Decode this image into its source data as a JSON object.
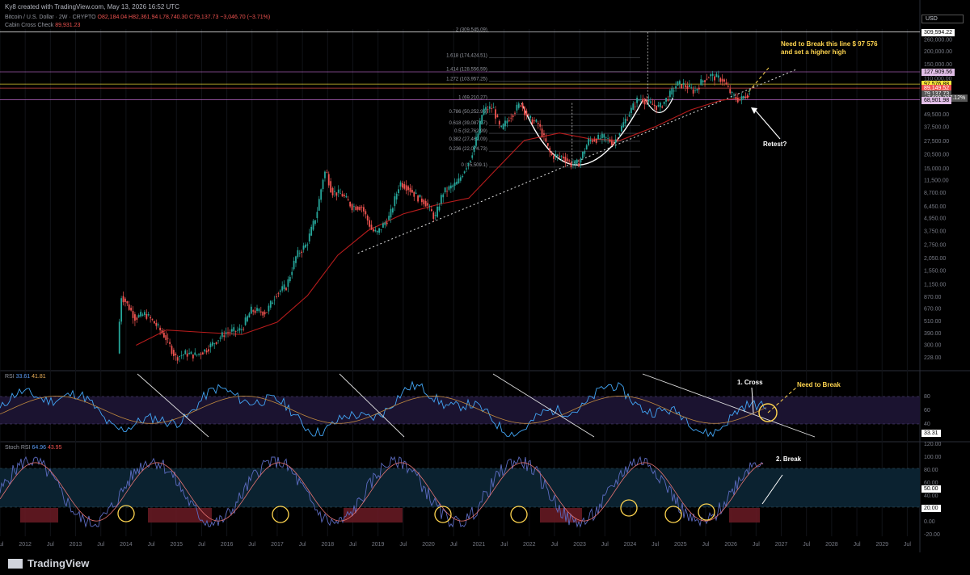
{
  "header": {
    "credit": "Ky8 created with TradingView.com, May 13, 2026 16:52 UTC",
    "symbol": "Bitcoin / U.S. Dollar · 2W · CRYPTO",
    "ohlc": "O82,184.04 H82,361.94 L78,740.30 C79,137.73 −3,046.70 (−3.71%)",
    "indicator": "Cabin Cross Check",
    "indicator_value": "89,931.23",
    "currency": "USD"
  },
  "footer": {
    "brand": "TradingView"
  },
  "price_tags": [
    {
      "label": "309,594.22",
      "price": 309594.22,
      "bg": "#ffffff",
      "fg": "#000000"
    },
    {
      "label": "127,909.56",
      "price": 127909.56,
      "bg": "#e1bee7",
      "fg": "#000000"
    },
    {
      "label": "97,576.88",
      "price": 97576.88,
      "bg": "#ffeb3b",
      "fg": "#000000"
    },
    {
      "label": "89,149.52",
      "price": 89149.52,
      "bg": "#ef5350",
      "fg": "#ffffff"
    },
    {
      "label": "79,137.73",
      "price": 79137.73,
      "bg": "#555555",
      "fg": "#ffffff"
    },
    {
      "label": "+7,609,297.12%",
      "price": 72000,
      "bg": "#555555",
      "fg": "#ffffff"
    },
    {
      "label": "68,901.98",
      "price": 68901.98,
      "bg": "#e1bee7",
      "fg": "#000000"
    }
  ],
  "annotations": {
    "break_line": "Need to Break this line $ 97 576",
    "higher_high": "and set a higher high",
    "retest": "Retest?",
    "cross": "1. Cross",
    "need_break": "Need to Break",
    "break2": "2. Break"
  },
  "rsi": {
    "label": "RSI",
    "v1": "33.61",
    "v2": "41.81",
    "tag": "33.31",
    "ticks": [
      "80",
      "60",
      "40"
    ]
  },
  "stoch": {
    "label": "Stoch RSI",
    "v1": "64.96",
    "v2": "43.95",
    "tag1": "50.00",
    "tag2": "20.00",
    "ticks": [
      "120.00",
      "100.00",
      "80.00",
      "60.00",
      "40.00",
      "20.00",
      "0.00",
      "-20.00"
    ]
  },
  "chart_data": {
    "type": "line",
    "title": "",
    "scale": "log",
    "price_axis_ticks": [
      260000,
      200000,
      150000,
      110000,
      67500,
      49500,
      37500,
      27500,
      20500,
      15000,
      11500,
      8700,
      6450,
      4950,
      3750,
      2750,
      2050,
      1550,
      1150,
      870,
      670,
      510,
      390,
      300,
      228
    ],
    "x_axis_ticks": [
      "Jul",
      "2012",
      "Jul",
      "2013",
      "Jul",
      "2014",
      "Jul",
      "2015",
      "Jul",
      "2016",
      "Jul",
      "2017",
      "Jul",
      "2018",
      "Jul",
      "2019",
      "Jul",
      "2020",
      "Jul",
      "2021",
      "Jul",
      "2022",
      "Jul",
      "2023",
      "Jul",
      "2024",
      "Jul",
      "2025",
      "Jul",
      "2026",
      "Jul",
      "2027",
      "Jul",
      "2028",
      "Jul",
      "2029",
      "Jul"
    ],
    "x_range": [
      2011.5,
      2029.75
    ],
    "y_range": [
      180,
      330000
    ],
    "fib_levels": [
      {
        "ratio": "2",
        "price": 309545.09,
        "label": "2 (309,545.09)"
      },
      {
        "ratio": "1.618",
        "price": 174424.51,
        "label": "1.618 (174,424.51)"
      },
      {
        "ratio": "1.414",
        "price": 128556.59,
        "label": "1.414 (128,556.59)"
      },
      {
        "ratio": "1.272",
        "price": 103957.25,
        "label": "1.272 (103,957.25)"
      },
      {
        "ratio": "1",
        "price": 69210.27,
        "label": "1 (69,210.27)"
      },
      {
        "ratio": "0.786",
        "price": 50252.96,
        "label": "0.786 (50,252.96)"
      },
      {
        "ratio": "0.618",
        "price": 39087.07,
        "label": "0.618 (39,087.07)"
      },
      {
        "ratio": "0.5",
        "price": 32762.99,
        "label": "0.5 (32,762.99)"
      },
      {
        "ratio": "0.382",
        "price": 27462.09,
        "label": "0.382 (27,462.09)"
      },
      {
        "ratio": "0.236",
        "price": 22074.73,
        "label": "0.236 (22,074.73)"
      },
      {
        "ratio": "0",
        "price": 15509.1,
        "label": "0 (15,509.1)"
      }
    ],
    "series": [
      {
        "name": "BTCUSD",
        "points": [
          [
            2013.85,
            250
          ],
          [
            2013.92,
            900
          ],
          [
            2014.0,
            800
          ],
          [
            2014.2,
            550
          ],
          [
            2014.4,
            600
          ],
          [
            2014.6,
            480
          ],
          [
            2014.8,
            360
          ],
          [
            2015.0,
            230
          ],
          [
            2015.2,
            250
          ],
          [
            2015.4,
            240
          ],
          [
            2015.6,
            270
          ],
          [
            2015.8,
            330
          ],
          [
            2016.0,
            400
          ],
          [
            2016.3,
            420
          ],
          [
            2016.5,
            650
          ],
          [
            2016.8,
            620
          ],
          [
            2017.0,
            950
          ],
          [
            2017.2,
            1100
          ],
          [
            2017.4,
            2200
          ],
          [
            2017.6,
            2800
          ],
          [
            2017.8,
            5500
          ],
          [
            2017.95,
            14000
          ],
          [
            2018.0,
            13500
          ],
          [
            2018.1,
            9000
          ],
          [
            2018.3,
            8500
          ],
          [
            2018.5,
            6500
          ],
          [
            2018.7,
            6400
          ],
          [
            2018.9,
            3800
          ],
          [
            2019.0,
            3600
          ],
          [
            2019.25,
            5200
          ],
          [
            2019.45,
            11000
          ],
          [
            2019.6,
            10000
          ],
          [
            2019.8,
            8000
          ],
          [
            2019.95,
            7200
          ],
          [
            2020.15,
            5000
          ],
          [
            2020.3,
            8800
          ],
          [
            2020.6,
            11000
          ],
          [
            2020.85,
            19000
          ],
          [
            2021.0,
            32000
          ],
          [
            2021.1,
            55000
          ],
          [
            2021.3,
            58000
          ],
          [
            2021.45,
            35000
          ],
          [
            2021.6,
            45000
          ],
          [
            2021.85,
            64000
          ],
          [
            2022.0,
            46000
          ],
          [
            2022.2,
            40000
          ],
          [
            2022.45,
            20000
          ],
          [
            2022.7,
            19500
          ],
          [
            2022.85,
            16500
          ],
          [
            2023.0,
            17000
          ],
          [
            2023.2,
            28000
          ],
          [
            2023.5,
            30000
          ],
          [
            2023.7,
            26500
          ],
          [
            2023.9,
            42000
          ],
          [
            2024.15,
            68000
          ],
          [
            2024.25,
            71000
          ],
          [
            2024.45,
            62000
          ],
          [
            2024.6,
            58000
          ],
          [
            2024.8,
            76000
          ],
          [
            2024.95,
            98000
          ],
          [
            2025.1,
            95000
          ],
          [
            2025.3,
            83000
          ],
          [
            2025.45,
            105000
          ],
          [
            2025.6,
            118000
          ],
          [
            2025.75,
            112000
          ],
          [
            2025.85,
            108000
          ],
          [
            2025.95,
            90000
          ],
          [
            2026.05,
            75000
          ],
          [
            2026.2,
            68000
          ],
          [
            2026.3,
            76000
          ],
          [
            2026.37,
            79137
          ]
        ]
      },
      {
        "name": "MA",
        "points": [
          [
            2014.2,
            300
          ],
          [
            2014.8,
            420
          ],
          [
            2015.5,
            400
          ],
          [
            2016.3,
            380
          ],
          [
            2017.0,
            500
          ],
          [
            2017.6,
            900
          ],
          [
            2018.2,
            2200
          ],
          [
            2018.8,
            3800
          ],
          [
            2019.5,
            5500
          ],
          [
            2020.2,
            6800
          ],
          [
            2020.8,
            7800
          ],
          [
            2021.3,
            14000
          ],
          [
            2021.9,
            28000
          ],
          [
            2022.6,
            33000
          ],
          [
            2023.2,
            29000
          ],
          [
            2023.8,
            28000
          ],
          [
            2024.5,
            38000
          ],
          [
            2025.2,
            55000
          ],
          [
            2025.8,
            68000
          ],
          [
            2026.37,
            74000
          ]
        ]
      }
    ]
  }
}
